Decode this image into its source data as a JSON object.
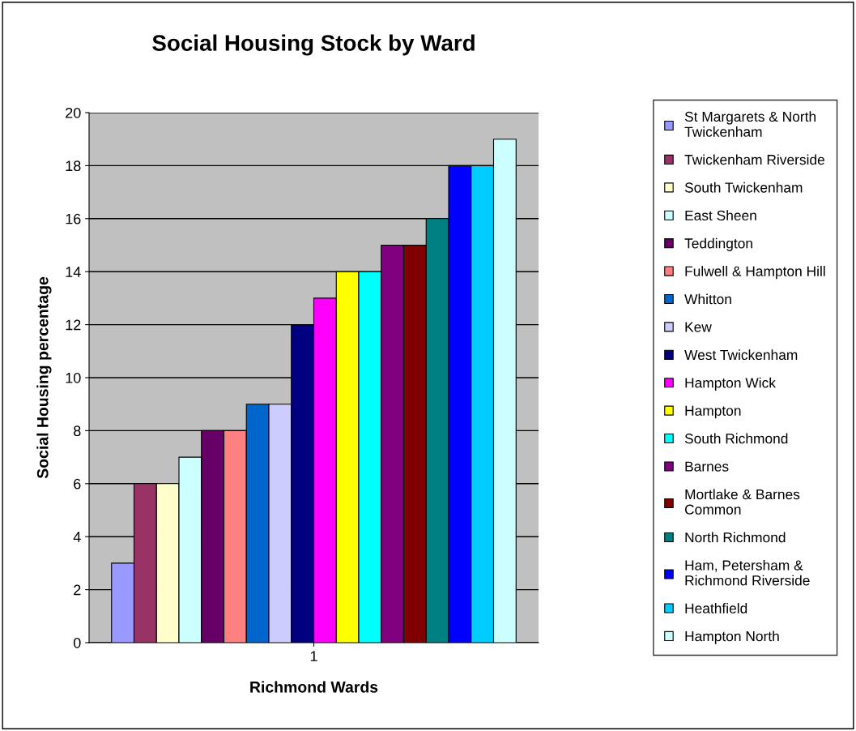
{
  "chart_data": {
    "type": "bar",
    "title": "Social Housing Stock by Ward",
    "xlabel": "Richmond Wards",
    "ylabel": "Social Housing percentage",
    "categories": [
      "1"
    ],
    "ylim": [
      0,
      20
    ],
    "yticks": [
      0,
      2,
      4,
      6,
      8,
      10,
      12,
      14,
      16,
      18,
      20
    ],
    "grid": "y",
    "legend": "right",
    "series": [
      {
        "name": "St Margarets & North\nTwickenham",
        "color": "#9999ff",
        "values": [
          3
        ]
      },
      {
        "name": "Twickenham Riverside",
        "color": "#993366",
        "values": [
          6
        ]
      },
      {
        "name": "South Twickenham",
        "color": "#ffffcc",
        "values": [
          6
        ]
      },
      {
        "name": "East Sheen",
        "color": "#ccffff",
        "values": [
          7
        ]
      },
      {
        "name": "Teddington",
        "color": "#660066",
        "values": [
          8
        ]
      },
      {
        "name": "Fulwell & Hampton Hill",
        "color": "#ff8080",
        "values": [
          8
        ]
      },
      {
        "name": "Whitton",
        "color": "#0066cc",
        "values": [
          9
        ]
      },
      {
        "name": "Kew",
        "color": "#ccccff",
        "values": [
          9
        ]
      },
      {
        "name": "West Twickenham",
        "color": "#000080",
        "values": [
          12
        ]
      },
      {
        "name": "Hampton Wick",
        "color": "#ff00ff",
        "values": [
          13
        ]
      },
      {
        "name": "Hampton",
        "color": "#ffff00",
        "values": [
          14
        ]
      },
      {
        "name": "South Richmond",
        "color": "#00ffff",
        "values": [
          14
        ]
      },
      {
        "name": "Barnes",
        "color": "#800080",
        "values": [
          15
        ]
      },
      {
        "name": "Mortlake & Barnes\nCommon",
        "color": "#800000",
        "values": [
          15
        ]
      },
      {
        "name": "North Richmond",
        "color": "#008080",
        "values": [
          16
        ]
      },
      {
        "name": "Ham, Petersham &\nRichmond Riverside",
        "color": "#0000ff",
        "values": [
          18
        ]
      },
      {
        "name": "Heathfield",
        "color": "#00ccff",
        "values": [
          18
        ]
      },
      {
        "name": "Hampton North",
        "color": "#ccffff",
        "values": [
          19
        ]
      }
    ]
  }
}
